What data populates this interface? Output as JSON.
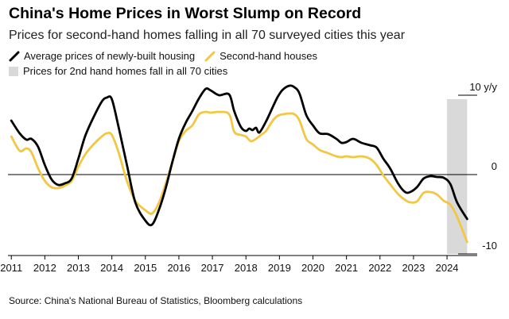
{
  "header": {
    "title": "China's Home Prices in Worst Slump on Record",
    "subtitle": "Prices for second-hand homes falling in all 70 surveyed cities this year"
  },
  "legend": {
    "new_homes": "Average prices of newly-built housing",
    "second_hand": "Second-hand houses",
    "shaded": "Prices for 2nd hand homes fall in all 70 cities"
  },
  "source": "Source: China's National Bureau of Statistics, Bloomberg calculations",
  "colors": {
    "new_homes": "#000000",
    "second_hand": "#f2c744",
    "shaded": "#d9d9d9",
    "axis": "#000000"
  },
  "chart_data": {
    "type": "line",
    "x_unit": "year",
    "xlim": [
      2010.9,
      2024.9
    ],
    "ylim": [
      -11,
      11.5
    ],
    "y_ticks": [
      {
        "value": 10,
        "label": "10 y/y"
      },
      {
        "value": 0,
        "label": "0"
      },
      {
        "value": -10,
        "label": "-10"
      }
    ],
    "x_ticks": [
      "2011",
      "2012",
      "2013",
      "2014",
      "2015",
      "2016",
      "2017",
      "2018",
      "2019",
      "2020",
      "2021",
      "2022",
      "2023",
      "2024"
    ],
    "shaded_region": {
      "x_start": 2024.0,
      "x_end": 2024.6
    },
    "series": [
      {
        "name": "Average prices of newly-built housing",
        "x": [
          2011.0,
          2011.25,
          2011.45,
          2011.6,
          2011.8,
          2012.0,
          2012.2,
          2012.4,
          2012.6,
          2012.8,
          2013.0,
          2013.2,
          2013.45,
          2013.7,
          2013.85,
          2014.0,
          2014.2,
          2014.45,
          2014.7,
          2015.0,
          2015.2,
          2015.4,
          2015.6,
          2015.8,
          2016.0,
          2016.2,
          2016.4,
          2016.6,
          2016.8,
          2016.95,
          2017.2,
          2017.5,
          2017.65,
          2017.85,
          2018.0,
          2018.1,
          2018.2,
          2018.3,
          2018.4,
          2018.6,
          2018.8,
          2018.95,
          2019.1,
          2019.3,
          2019.45,
          2019.6,
          2019.8,
          2020.0,
          2020.2,
          2020.45,
          2020.7,
          2020.85,
          2021.0,
          2021.2,
          2021.45,
          2021.7,
          2021.9,
          2022.1,
          2022.3,
          2022.55,
          2022.75,
          2022.9,
          2023.1,
          2023.3,
          2023.5,
          2023.7,
          2023.9,
          2024.1,
          2024.3,
          2024.6
        ],
        "values": [
          6.8,
          5.2,
          4.4,
          4.5,
          3.5,
          1.2,
          -0.6,
          -1.3,
          -1.1,
          -0.5,
          2.0,
          4.8,
          7.2,
          9.2,
          9.7,
          9.5,
          6.0,
          1.2,
          -3.5,
          -5.8,
          -6.3,
          -4.5,
          -1.8,
          1.5,
          4.5,
          6.5,
          8.0,
          9.6,
          10.8,
          10.6,
          10.0,
          10.1,
          8.0,
          6.0,
          5.5,
          5.8,
          5.6,
          5.9,
          5.3,
          6.7,
          8.5,
          9.8,
          10.7,
          11.2,
          11.0,
          10.2,
          7.5,
          6.2,
          5.2,
          5.1,
          4.5,
          4.0,
          4.1,
          4.5,
          4.0,
          3.7,
          3.4,
          2.0,
          0.8,
          -1.2,
          -2.2,
          -2.2,
          -1.6,
          -0.5,
          -0.2,
          -0.3,
          -0.4,
          -1.2,
          -3.5,
          -5.6
        ]
      },
      {
        "name": "Second-hand houses",
        "x": [
          2011.0,
          2011.25,
          2011.45,
          2011.6,
          2011.8,
          2012.0,
          2012.2,
          2012.4,
          2012.6,
          2012.8,
          2013.0,
          2013.2,
          2013.45,
          2013.7,
          2013.85,
          2014.0,
          2014.2,
          2014.45,
          2014.7,
          2015.0,
          2015.2,
          2015.4,
          2015.6,
          2015.8,
          2016.0,
          2016.2,
          2016.4,
          2016.6,
          2016.8,
          2016.95,
          2017.2,
          2017.5,
          2017.65,
          2017.85,
          2018.0,
          2018.15,
          2018.3,
          2018.45,
          2018.6,
          2018.8,
          2018.95,
          2019.1,
          2019.3,
          2019.45,
          2019.6,
          2019.8,
          2020.0,
          2020.2,
          2020.45,
          2020.7,
          2020.85,
          2021.0,
          2021.2,
          2021.45,
          2021.7,
          2021.9,
          2022.1,
          2022.3,
          2022.55,
          2022.75,
          2022.9,
          2023.1,
          2023.3,
          2023.5,
          2023.7,
          2023.9,
          2024.1,
          2024.3,
          2024.6
        ],
        "values": [
          4.8,
          3.0,
          3.3,
          2.8,
          0.8,
          -0.8,
          -1.6,
          -1.7,
          -1.4,
          -0.8,
          1.0,
          2.5,
          3.8,
          4.8,
          5.2,
          5.0,
          2.8,
          -0.8,
          -3.3,
          -4.5,
          -4.9,
          -3.6,
          -1.2,
          1.5,
          4.2,
          5.5,
          6.2,
          7.6,
          7.9,
          7.8,
          7.9,
          7.6,
          5.4,
          5.0,
          4.8,
          4.2,
          4.5,
          5.0,
          5.5,
          6.8,
          7.4,
          7.6,
          7.7,
          7.6,
          6.8,
          4.5,
          3.8,
          3.1,
          2.7,
          2.3,
          2.2,
          2.3,
          2.2,
          2.3,
          2.0,
          1.2,
          -0.1,
          -1.2,
          -2.5,
          -3.2,
          -3.5,
          -3.4,
          -2.3,
          -2.2,
          -2.5,
          -3.3,
          -3.8,
          -5.3,
          -8.5
        ]
      }
    ]
  }
}
